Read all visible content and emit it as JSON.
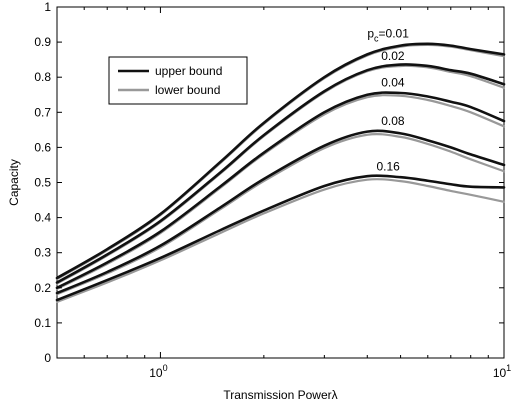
{
  "chart_data": {
    "type": "line",
    "xlabel": "Transmission Powerλ",
    "ylabel": "Capacity",
    "xscale": "log",
    "xlim": [
      0.5,
      10
    ],
    "ylim": [
      0,
      1
    ],
    "grid": false,
    "legend_placement": "upper-left",
    "x_ticks": [
      {
        "value": 1,
        "base": "10",
        "exp": "0"
      },
      {
        "value": 10,
        "base": "10",
        "exp": "1"
      }
    ],
    "y_ticks": [
      {
        "value": 0,
        "label": "0"
      },
      {
        "value": 0.1,
        "label": "0.1"
      },
      {
        "value": 0.2,
        "label": "0.2"
      },
      {
        "value": 0.3,
        "label": "0.3"
      },
      {
        "value": 0.4,
        "label": "0.4"
      },
      {
        "value": 0.5,
        "label": "0.5"
      },
      {
        "value": 0.6,
        "label": "0.6"
      },
      {
        "value": 0.7,
        "label": "0.7"
      },
      {
        "value": 0.8,
        "label": "0.8"
      },
      {
        "value": 0.9,
        "label": "0.9"
      },
      {
        "value": 1,
        "label": "1"
      }
    ],
    "legend": [
      {
        "label": "upper bound",
        "color": "#111111"
      },
      {
        "label": "lower bound",
        "color": "#999999"
      }
    ],
    "curve_labels": [
      {
        "prefix": "p",
        "sub": "c",
        "suffix": "=0.01",
        "x": 4.6,
        "y": 0.905
      },
      {
        "prefix": "",
        "sub": "",
        "suffix": "0.02",
        "x": 4.75,
        "y": 0.84
      },
      {
        "prefix": "",
        "sub": "",
        "suffix": "0.04",
        "x": 4.75,
        "y": 0.765
      },
      {
        "prefix": "",
        "sub": "",
        "suffix": "0.08",
        "x": 4.75,
        "y": 0.655
      },
      {
        "prefix": "",
        "sub": "",
        "suffix": "0.16",
        "x": 4.6,
        "y": 0.525
      }
    ],
    "series": [
      {
        "group": "upper bound",
        "pc": 0.01,
        "color": "#111111",
        "x": [
          0.5,
          0.7,
          1.0,
          1.5,
          2.0,
          3.0,
          4.0,
          5.0,
          6.0,
          7.0,
          8.0,
          10.0
        ],
        "y": [
          0.228,
          0.31,
          0.41,
          0.56,
          0.67,
          0.8,
          0.865,
          0.89,
          0.895,
          0.89,
          0.88,
          0.865
        ]
      },
      {
        "group": "lower bound",
        "pc": 0.01,
        "color": "#999999",
        "x": [
          0.5,
          0.7,
          1.0,
          1.5,
          2.0,
          3.0,
          4.0,
          5.0,
          6.0,
          7.0,
          8.0,
          10.0
        ],
        "y": [
          0.225,
          0.307,
          0.407,
          0.557,
          0.667,
          0.797,
          0.862,
          0.887,
          0.892,
          0.887,
          0.877,
          0.86
        ]
      },
      {
        "group": "upper bound",
        "pc": 0.02,
        "color": "#111111",
        "x": [
          0.5,
          0.7,
          1.0,
          1.5,
          2.0,
          3.0,
          4.0,
          5.0,
          6.0,
          7.0,
          8.0,
          10.0
        ],
        "y": [
          0.215,
          0.295,
          0.39,
          0.53,
          0.635,
          0.76,
          0.82,
          0.836,
          0.832,
          0.82,
          0.81,
          0.78
        ]
      },
      {
        "group": "lower bound",
        "pc": 0.02,
        "color": "#999999",
        "x": [
          0.5,
          0.7,
          1.0,
          1.5,
          2.0,
          3.0,
          4.0,
          5.0,
          6.0,
          7.0,
          8.0,
          10.0
        ],
        "y": [
          0.212,
          0.292,
          0.387,
          0.527,
          0.632,
          0.757,
          0.817,
          0.832,
          0.828,
          0.815,
          0.803,
          0.77
        ]
      },
      {
        "group": "upper bound",
        "pc": 0.04,
        "color": "#111111",
        "x": [
          0.5,
          0.7,
          1.0,
          1.5,
          2.0,
          3.0,
          4.0,
          5.0,
          6.0,
          7.0,
          8.0,
          10.0
        ],
        "y": [
          0.2,
          0.272,
          0.36,
          0.49,
          0.585,
          0.7,
          0.75,
          0.755,
          0.745,
          0.73,
          0.715,
          0.675
        ]
      },
      {
        "group": "lower bound",
        "pc": 0.04,
        "color": "#999999",
        "x": [
          0.5,
          0.7,
          1.0,
          1.5,
          2.0,
          3.0,
          4.0,
          5.0,
          6.0,
          7.0,
          8.0,
          10.0
        ],
        "y": [
          0.197,
          0.268,
          0.356,
          0.486,
          0.581,
          0.694,
          0.743,
          0.747,
          0.735,
          0.718,
          0.7,
          0.66
        ]
      },
      {
        "group": "upper bound",
        "pc": 0.08,
        "color": "#111111",
        "x": [
          0.5,
          0.7,
          1.0,
          1.5,
          2.0,
          3.0,
          4.0,
          5.0,
          6.0,
          7.0,
          8.0,
          10.0
        ],
        "y": [
          0.185,
          0.245,
          0.32,
          0.43,
          0.51,
          0.605,
          0.645,
          0.64,
          0.62,
          0.6,
          0.58,
          0.55
        ]
      },
      {
        "group": "lower bound",
        "pc": 0.08,
        "color": "#999999",
        "x": [
          0.5,
          0.7,
          1.0,
          1.5,
          2.0,
          3.0,
          4.0,
          5.0,
          6.0,
          7.0,
          8.0,
          10.0
        ],
        "y": [
          0.182,
          0.241,
          0.315,
          0.425,
          0.504,
          0.598,
          0.636,
          0.63,
          0.61,
          0.588,
          0.566,
          0.532
        ]
      },
      {
        "group": "upper bound",
        "pc": 0.16,
        "color": "#111111",
        "x": [
          0.5,
          0.7,
          1.0,
          1.5,
          2.0,
          3.0,
          4.0,
          5.0,
          6.0,
          7.0,
          8.0,
          10.0
        ],
        "y": [
          0.165,
          0.222,
          0.285,
          0.365,
          0.42,
          0.49,
          0.518,
          0.515,
          0.505,
          0.495,
          0.488,
          0.486
        ]
      },
      {
        "group": "lower bound",
        "pc": 0.16,
        "color": "#999999",
        "x": [
          0.5,
          0.7,
          1.0,
          1.5,
          2.0,
          3.0,
          4.0,
          5.0,
          6.0,
          7.0,
          8.0,
          10.0
        ],
        "y": [
          0.16,
          0.215,
          0.278,
          0.357,
          0.412,
          0.48,
          0.508,
          0.504,
          0.49,
          0.476,
          0.465,
          0.445
        ]
      }
    ]
  }
}
